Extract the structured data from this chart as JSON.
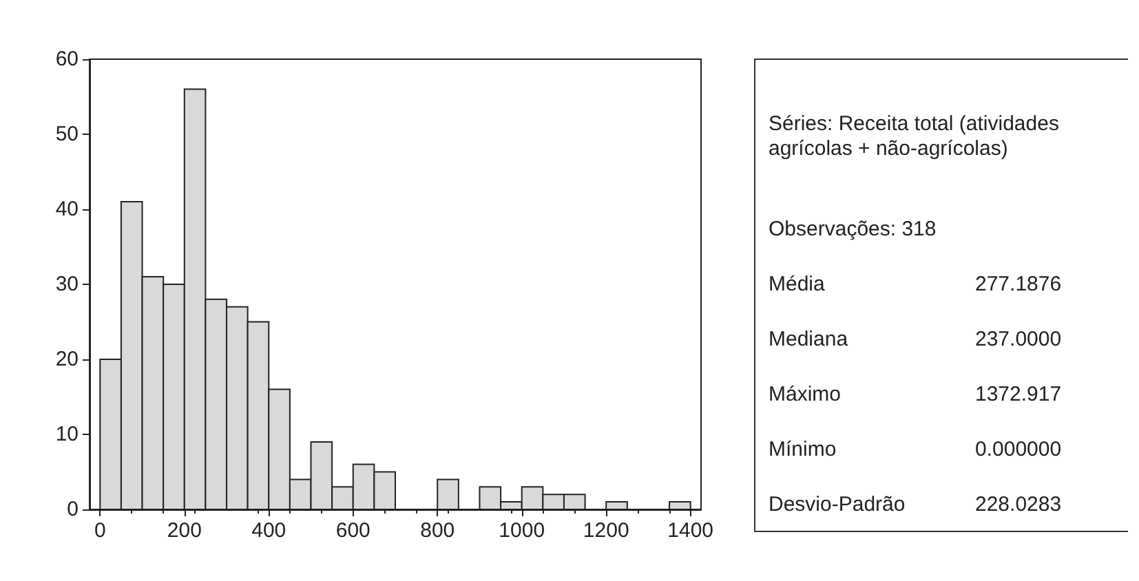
{
  "chart_data": {
    "type": "histogram",
    "bins": [
      0,
      50,
      100,
      150,
      200,
      250,
      300,
      350,
      400,
      450,
      500,
      550,
      600,
      650,
      700,
      750,
      800,
      850,
      900,
      950,
      1000,
      1050,
      1100,
      1150,
      1200,
      1250,
      1300,
      1350,
      1400
    ],
    "values": [
      20,
      41,
      31,
      30,
      56,
      28,
      27,
      25,
      16,
      4,
      9,
      3,
      6,
      5,
      0,
      0,
      4,
      0,
      3,
      1,
      3,
      2,
      2,
      0,
      1,
      0,
      0,
      1
    ],
    "color": "#d9d9d9",
    "xlim": [
      -25,
      1425
    ],
    "xticks": [
      0,
      200,
      400,
      600,
      800,
      1000,
      1200,
      1400
    ],
    "ylim": [
      0,
      60
    ],
    "yticks": [
      0,
      10,
      20,
      30,
      40,
      50,
      60
    ],
    "grid": false,
    "annotations": [
      "Séries: Receita total (atividades agrícolas + não-agrícolas)",
      "Observações: 318",
      "Média",
      "277.1876",
      "Mediana",
      "237.0000",
      "Máximo",
      "1372.917",
      "Mínimo",
      "0.000000",
      "Desvio-Padrão",
      "228.0283"
    ]
  }
}
